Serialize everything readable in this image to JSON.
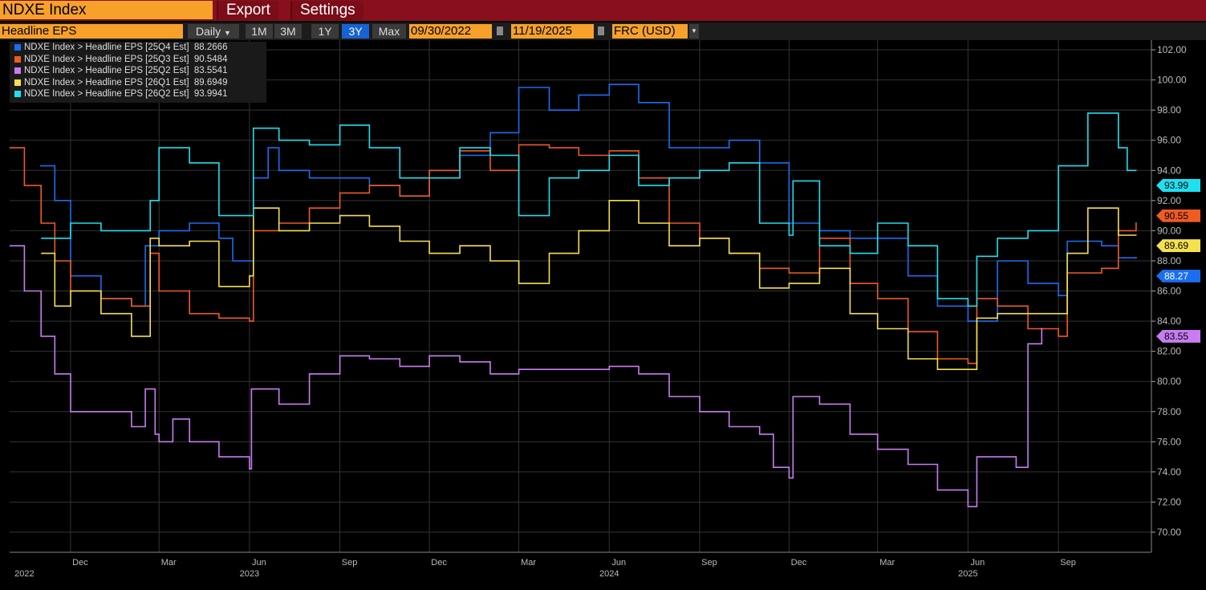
{
  "header": {
    "ticker": "NDXE Index",
    "export_label": "Export",
    "settings_label": "Settings"
  },
  "toolbar": {
    "field": "Headline EPS",
    "frequency": "Daily",
    "ranges": [
      "1M",
      "3M",
      "1Y",
      "3Y",
      "Max"
    ],
    "active_range": "3Y",
    "start_date": "09/30/2022",
    "end_date": "11/19/2025",
    "currency": "FRC (USD)"
  },
  "chart_data": {
    "type": "line",
    "title": "NDXE Index Headline EPS",
    "ylim": [
      69,
      103
    ],
    "y_ticks": [
      "70.00",
      "72.00",
      "74.00",
      "76.00",
      "78.00",
      "80.00",
      "82.00",
      "84.00",
      "86.00",
      "88.00",
      "90.00",
      "92.00",
      "94.00",
      "96.00",
      "98.00",
      "100.00",
      "102.00"
    ],
    "x_month_ticks": [
      {
        "date": "2022-12-01",
        "label": "Dec"
      },
      {
        "date": "2023-03-01",
        "label": "Mar"
      },
      {
        "date": "2023-06-01",
        "label": "Jun"
      },
      {
        "date": "2023-09-01",
        "label": "Sep"
      },
      {
        "date": "2023-12-01",
        "label": "Dec"
      },
      {
        "date": "2024-03-01",
        "label": "Mar"
      },
      {
        "date": "2024-06-01",
        "label": "Jun"
      },
      {
        "date": "2024-09-01",
        "label": "Sep"
      },
      {
        "date": "2024-12-01",
        "label": "Dec"
      },
      {
        "date": "2025-03-01",
        "label": "Mar"
      },
      {
        "date": "2025-06-01",
        "label": "Jun"
      },
      {
        "date": "2025-09-01",
        "label": "Sep"
      }
    ],
    "x_year_ticks": [
      {
        "date": "2022-10-15",
        "label": "2022"
      },
      {
        "date": "2023-06-01",
        "label": "2023"
      },
      {
        "date": "2024-06-01",
        "label": "2024"
      },
      {
        "date": "2025-06-01",
        "label": "2025"
      }
    ],
    "grid": true,
    "legend": "top-left",
    "series": [
      {
        "name": "NDXE Index > Headline EPS [25Q4 Est]",
        "last": "88.2666",
        "tag": "88.27",
        "color": "#1a6ef0",
        "tagText": "#fff",
        "points": [
          [
            "2022-10-31",
            94.3
          ],
          [
            "2022-11-15",
            92
          ],
          [
            "2022-12-01",
            87
          ],
          [
            "2023-01-01",
            85.5
          ],
          [
            "2023-02-01",
            85
          ],
          [
            "2023-02-15",
            89
          ],
          [
            "2023-03-01",
            90
          ],
          [
            "2023-04-01",
            90.5
          ],
          [
            "2023-05-01",
            89.5
          ],
          [
            "2023-05-15",
            88
          ],
          [
            "2023-06-05",
            93.5
          ],
          [
            "2023-06-20",
            95.5
          ],
          [
            "2023-07-01",
            94
          ],
          [
            "2023-08-01",
            93.5
          ],
          [
            "2023-09-01",
            93.5
          ],
          [
            "2023-10-01",
            93
          ],
          [
            "2023-11-01",
            92.3
          ],
          [
            "2023-12-01",
            94
          ],
          [
            "2024-01-01",
            95
          ],
          [
            "2024-02-01",
            96.5
          ],
          [
            "2024-03-01",
            99.5
          ],
          [
            "2024-04-01",
            98
          ],
          [
            "2024-05-01",
            99
          ],
          [
            "2024-06-01",
            99.7
          ],
          [
            "2024-07-01",
            98.5
          ],
          [
            "2024-08-01",
            95.5
          ],
          [
            "2024-09-01",
            95.5
          ],
          [
            "2024-10-01",
            96
          ],
          [
            "2024-11-01",
            94.5
          ],
          [
            "2024-12-01",
            90.5
          ],
          [
            "2025-01-01",
            90
          ],
          [
            "2025-02-01",
            89.5
          ],
          [
            "2025-03-01",
            89.5
          ],
          [
            "2025-04-01",
            87
          ],
          [
            "2025-05-01",
            85
          ],
          [
            "2025-06-01",
            84
          ],
          [
            "2025-07-01",
            88
          ],
          [
            "2025-08-01",
            86.5
          ],
          [
            "2025-09-01",
            85.7
          ],
          [
            "2025-09-10",
            89.3
          ],
          [
            "2025-10-15",
            89
          ],
          [
            "2025-11-01",
            88.2
          ],
          [
            "2025-11-19",
            88.27
          ]
        ]
      },
      {
        "name": "NDXE Index > Headline EPS [25Q3 Est]",
        "last": "90.5484",
        "tag": "90.55",
        "color": "#f05a23",
        "tagText": "#000",
        "points": [
          [
            "2022-09-30",
            95.5
          ],
          [
            "2022-10-15",
            93
          ],
          [
            "2022-11-01",
            90.5
          ],
          [
            "2022-11-15",
            88
          ],
          [
            "2022-12-01",
            86
          ],
          [
            "2023-01-01",
            85.5
          ],
          [
            "2023-02-01",
            85
          ],
          [
            "2023-02-20",
            88.5
          ],
          [
            "2023-03-01",
            86
          ],
          [
            "2023-04-01",
            84.5
          ],
          [
            "2023-05-01",
            84.2
          ],
          [
            "2023-06-01",
            84
          ],
          [
            "2023-06-05",
            90
          ],
          [
            "2023-07-01",
            90.5
          ],
          [
            "2023-08-01",
            91.5
          ],
          [
            "2023-09-01",
            92.5
          ],
          [
            "2023-10-01",
            93
          ],
          [
            "2023-11-01",
            92.3
          ],
          [
            "2023-12-01",
            94
          ],
          [
            "2024-01-01",
            95.3
          ],
          [
            "2024-02-01",
            94
          ],
          [
            "2024-03-01",
            95.7
          ],
          [
            "2024-04-01",
            95.5
          ],
          [
            "2024-05-01",
            95
          ],
          [
            "2024-06-01",
            95.3
          ],
          [
            "2024-07-01",
            93.5
          ],
          [
            "2024-08-01",
            90.5
          ],
          [
            "2024-09-01",
            89.5
          ],
          [
            "2024-10-01",
            88.5
          ],
          [
            "2024-11-01",
            87.5
          ],
          [
            "2024-12-01",
            87.2
          ],
          [
            "2025-01-01",
            89.5
          ],
          [
            "2025-02-01",
            86.5
          ],
          [
            "2025-03-01",
            85.5
          ],
          [
            "2025-04-01",
            83.3
          ],
          [
            "2025-05-01",
            81.5
          ],
          [
            "2025-06-01",
            81.2
          ],
          [
            "2025-06-10",
            85.5
          ],
          [
            "2025-07-01",
            85
          ],
          [
            "2025-08-01",
            83.5
          ],
          [
            "2025-09-01",
            83
          ],
          [
            "2025-09-10",
            87.2
          ],
          [
            "2025-10-15",
            87.5
          ],
          [
            "2025-11-01",
            90
          ],
          [
            "2025-11-19",
            90.55
          ]
        ]
      },
      {
        "name": "NDXE Index > Headline EPS [25Q2 Est]",
        "last": "83.5541",
        "tag": "83.55",
        "color": "#c77df0",
        "tagText": "#000",
        "points": [
          [
            "2022-09-30",
            89
          ],
          [
            "2022-10-15",
            86
          ],
          [
            "2022-11-01",
            83
          ],
          [
            "2022-11-15",
            80.5
          ],
          [
            "2022-12-01",
            78
          ],
          [
            "2023-01-01",
            78
          ],
          [
            "2023-02-01",
            77
          ],
          [
            "2023-02-15",
            79.5
          ],
          [
            "2023-02-25",
            76.5
          ],
          [
            "2023-03-01",
            76
          ],
          [
            "2023-03-15",
            77.5
          ],
          [
            "2023-04-01",
            76
          ],
          [
            "2023-05-01",
            75
          ],
          [
            "2023-06-01",
            74.2
          ],
          [
            "2023-06-03",
            79.5
          ],
          [
            "2023-07-01",
            78.5
          ],
          [
            "2023-08-01",
            80.5
          ],
          [
            "2023-09-01",
            81.7
          ],
          [
            "2023-10-01",
            81.5
          ],
          [
            "2023-11-01",
            81
          ],
          [
            "2023-12-01",
            81.7
          ],
          [
            "2024-01-01",
            81.3
          ],
          [
            "2024-02-01",
            80.5
          ],
          [
            "2024-03-01",
            80.8
          ],
          [
            "2024-04-01",
            80.8
          ],
          [
            "2024-05-01",
            80.8
          ],
          [
            "2024-06-01",
            81
          ],
          [
            "2024-07-01",
            80.5
          ],
          [
            "2024-08-01",
            79
          ],
          [
            "2024-09-01",
            78
          ],
          [
            "2024-10-01",
            77
          ],
          [
            "2024-11-01",
            76.5
          ],
          [
            "2024-11-15",
            74.3
          ],
          [
            "2024-12-01",
            73.6
          ],
          [
            "2024-12-05",
            79
          ],
          [
            "2025-01-01",
            78.5
          ],
          [
            "2025-02-01",
            76.5
          ],
          [
            "2025-03-01",
            75.5
          ],
          [
            "2025-04-01",
            74.5
          ],
          [
            "2025-05-01",
            72.8
          ],
          [
            "2025-06-01",
            71.7
          ],
          [
            "2025-06-10",
            75
          ],
          [
            "2025-07-01",
            75
          ],
          [
            "2025-07-20",
            74.3
          ],
          [
            "2025-08-01",
            82.5
          ],
          [
            "2025-08-15",
            83.55
          ]
        ]
      },
      {
        "name": "NDXE Index > Headline EPS [26Q1 Est]",
        "last": "89.6949",
        "tag": "89.69",
        "color": "#f5e050",
        "tagText": "#000",
        "points": [
          [
            "2022-11-01",
            88.5
          ],
          [
            "2022-11-15",
            85
          ],
          [
            "2022-12-01",
            86
          ],
          [
            "2023-01-01",
            84.5
          ],
          [
            "2023-02-01",
            83
          ],
          [
            "2023-02-20",
            89.5
          ],
          [
            "2023-03-01",
            89
          ],
          [
            "2023-04-01",
            89.3
          ],
          [
            "2023-05-01",
            86.3
          ],
          [
            "2023-06-01",
            87
          ],
          [
            "2023-06-05",
            91.5
          ],
          [
            "2023-07-01",
            90
          ],
          [
            "2023-08-01",
            90.5
          ],
          [
            "2023-09-01",
            91
          ],
          [
            "2023-10-01",
            90.3
          ],
          [
            "2023-11-01",
            89.3
          ],
          [
            "2023-12-01",
            88.5
          ],
          [
            "2024-01-01",
            89
          ],
          [
            "2024-02-01",
            88
          ],
          [
            "2024-03-01",
            86.5
          ],
          [
            "2024-04-01",
            88.5
          ],
          [
            "2024-05-01",
            90
          ],
          [
            "2024-06-01",
            92
          ],
          [
            "2024-07-01",
            90.5
          ],
          [
            "2024-08-01",
            89
          ],
          [
            "2024-09-01",
            89.5
          ],
          [
            "2024-10-01",
            88.5
          ],
          [
            "2024-11-01",
            86.2
          ],
          [
            "2024-12-01",
            86.5
          ],
          [
            "2025-01-01",
            87.5
          ],
          [
            "2025-02-01",
            84.5
          ],
          [
            "2025-03-01",
            83.5
          ],
          [
            "2025-04-01",
            81.5
          ],
          [
            "2025-05-01",
            80.8
          ],
          [
            "2025-06-01",
            80.8
          ],
          [
            "2025-06-10",
            84.2
          ],
          [
            "2025-07-01",
            84.5
          ],
          [
            "2025-08-01",
            84.5
          ],
          [
            "2025-09-01",
            84.5
          ],
          [
            "2025-09-10",
            88.5
          ],
          [
            "2025-10-01",
            91.5
          ],
          [
            "2025-11-01",
            89.7
          ],
          [
            "2025-11-19",
            89.69
          ]
        ]
      },
      {
        "name": "NDXE Index > Headline EPS [26Q2 Est]",
        "last": "93.9941",
        "tag": "93.99",
        "color": "#1ee0f0",
        "tagText": "#000",
        "points": [
          [
            "2022-11-01",
            89.5
          ],
          [
            "2022-12-01",
            90.5
          ],
          [
            "2023-01-01",
            90
          ],
          [
            "2023-02-01",
            90
          ],
          [
            "2023-02-20",
            92
          ],
          [
            "2023-03-01",
            95.5
          ],
          [
            "2023-04-01",
            94.5
          ],
          [
            "2023-05-01",
            91
          ],
          [
            "2023-06-01",
            91
          ],
          [
            "2023-06-05",
            96.8
          ],
          [
            "2023-07-01",
            96
          ],
          [
            "2023-08-01",
            95.7
          ],
          [
            "2023-09-01",
            97
          ],
          [
            "2023-10-01",
            95.5
          ],
          [
            "2023-11-01",
            93.5
          ],
          [
            "2023-12-01",
            93.5
          ],
          [
            "2024-01-01",
            95.5
          ],
          [
            "2024-02-01",
            95
          ],
          [
            "2024-03-01",
            91
          ],
          [
            "2024-04-01",
            93.5
          ],
          [
            "2024-05-01",
            94
          ],
          [
            "2024-06-01",
            95
          ],
          [
            "2024-07-01",
            93
          ],
          [
            "2024-08-01",
            93.5
          ],
          [
            "2024-09-01",
            94
          ],
          [
            "2024-10-01",
            94.5
          ],
          [
            "2024-11-01",
            90.5
          ],
          [
            "2024-12-01",
            89.7
          ],
          [
            "2024-12-05",
            93.3
          ],
          [
            "2025-01-01",
            89
          ],
          [
            "2025-02-01",
            88.5
          ],
          [
            "2025-03-01",
            90.5
          ],
          [
            "2025-04-01",
            89
          ],
          [
            "2025-05-01",
            85.5
          ],
          [
            "2025-06-01",
            85
          ],
          [
            "2025-06-10",
            88.3
          ],
          [
            "2025-07-01",
            89.5
          ],
          [
            "2025-08-01",
            90
          ],
          [
            "2025-09-01",
            94.3
          ],
          [
            "2025-10-01",
            97.8
          ],
          [
            "2025-11-01",
            95.5
          ],
          [
            "2025-11-10",
            94
          ],
          [
            "2025-11-19",
            93.99
          ]
        ]
      }
    ]
  }
}
